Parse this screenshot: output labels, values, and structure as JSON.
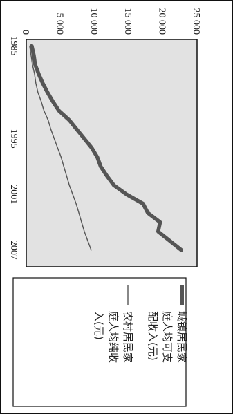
{
  "chart_data": {
    "type": "line",
    "title": "",
    "xlabel": "",
    "ylabel": "",
    "x_ticks": [
      "1985",
      "1995",
      "2001",
      "2007"
    ],
    "y_ticks": [
      "0",
      "5 000",
      "10 000",
      "15 000",
      "20 000",
      "25 000"
    ],
    "ylim": [
      0,
      25000
    ],
    "grid": false,
    "legend_position": "right",
    "colors": {
      "urban": "#555555",
      "rural": "#555555",
      "plot_bg": "#e2e2e2"
    },
    "series": [
      {
        "name": "城镇居民家庭人均可支配收入(元)",
        "legend_lines": [
          "城镇居民家",
          "庭人均可支",
          "配收入(元)"
        ],
        "style": "thick",
        "x": [
          1985,
          1986,
          1987,
          1988,
          1989,
          1990,
          1991,
          1992,
          1993,
          1994,
          1995,
          1996,
          1997,
          1998,
          1999,
          2000,
          2001,
          2002,
          2003,
          2004,
          2005,
          2006,
          2007
        ],
        "y": [
          800,
          1100,
          1300,
          1800,
          2400,
          3100,
          3900,
          4800,
          6300,
          7400,
          8500,
          9600,
          10400,
          10900,
          11800,
          12800,
          14700,
          17100,
          17800,
          19600,
          19300,
          21000,
          22700
        ]
      },
      {
        "name": "农村居民家庭人均纯收入(元)",
        "legend_lines": [
          "农村居民家",
          "庭人均纯收",
          "入(元)"
        ],
        "style": "thin",
        "x": [
          1985,
          1986,
          1987,
          1988,
          1989,
          1990,
          1991,
          1992,
          1993,
          1994,
          1995,
          1996,
          1997,
          1998,
          1999,
          2000,
          2001,
          2002,
          2003,
          2004,
          2005,
          2006,
          2007
        ],
        "y": [
          500,
          700,
          900,
          1200,
          1400,
          1700,
          2200,
          2600,
          3200,
          3600,
          4100,
          4600,
          5100,
          5500,
          5900,
          6300,
          6800,
          7300,
          7700,
          8100,
          8500,
          9000,
          9500
        ]
      }
    ]
  }
}
